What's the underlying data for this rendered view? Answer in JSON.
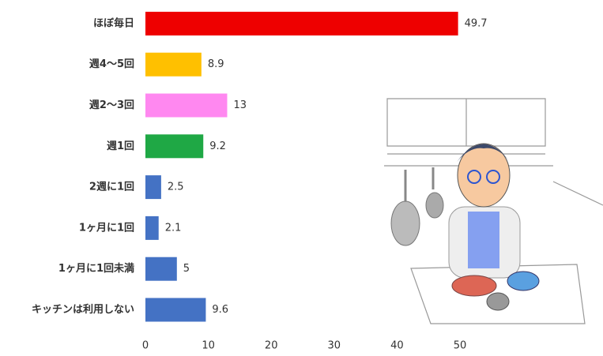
{
  "chart_data": {
    "type": "barh",
    "categories": [
      "ほぼ毎日",
      "週4～5回",
      "週2～3回",
      "週1回",
      "2週に1回",
      "1ヶ月に1回",
      "1ヶ月に1回未満",
      "キッチンは利用しない"
    ],
    "values": [
      49.7,
      8.9,
      13,
      9.2,
      2.5,
      2.1,
      5,
      9.6
    ],
    "colors": [
      "#ee0000",
      "#ffc000",
      "#ff88f0",
      "#1fa845",
      "#4472c4",
      "#4472c4",
      "#4472c4",
      "#4472c4"
    ],
    "xlim": [
      0,
      50
    ],
    "xticks": [
      0,
      10,
      20,
      30,
      40,
      50
    ]
  }
}
